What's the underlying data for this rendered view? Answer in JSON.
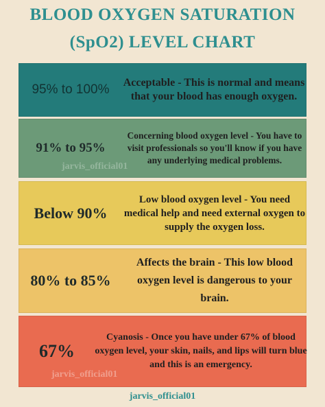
{
  "title": {
    "line1": "BLOOD OXYGEN SATURATION",
    "line2": "(SpO2) LEVEL CHART"
  },
  "levels": [
    {
      "range": "95% to 100%",
      "description": "Acceptable - This is normal and means that your blood has enough oxygen.",
      "color": "#237b7a"
    },
    {
      "range": "91% to 95%",
      "description": "Concerning blood oxygen level - You have to visit professionals so you'll know if you have any underlying medical problems.",
      "color": "#6c9a78"
    },
    {
      "range": "Below 90%",
      "description": "Low blood oxygen level - You need medical help and need external oxygen to supply the oxygen loss.",
      "color": "#e7c95a"
    },
    {
      "range": "80% to 85%",
      "description": "Affects the brain - This low blood oxygen level is dangerous to your brain.",
      "color": "#edc368"
    },
    {
      "range": "67%",
      "description": "Cyanosis - Once you have under 67% of blood oxygen level, your skin, nails, and lips will turn blue and this is an emergency.",
      "color": "#e96b50"
    }
  ],
  "watermarks": {
    "w1": "jarvis_official01",
    "w2": "jarvis_official01"
  },
  "footer": "jarvis_official01"
}
